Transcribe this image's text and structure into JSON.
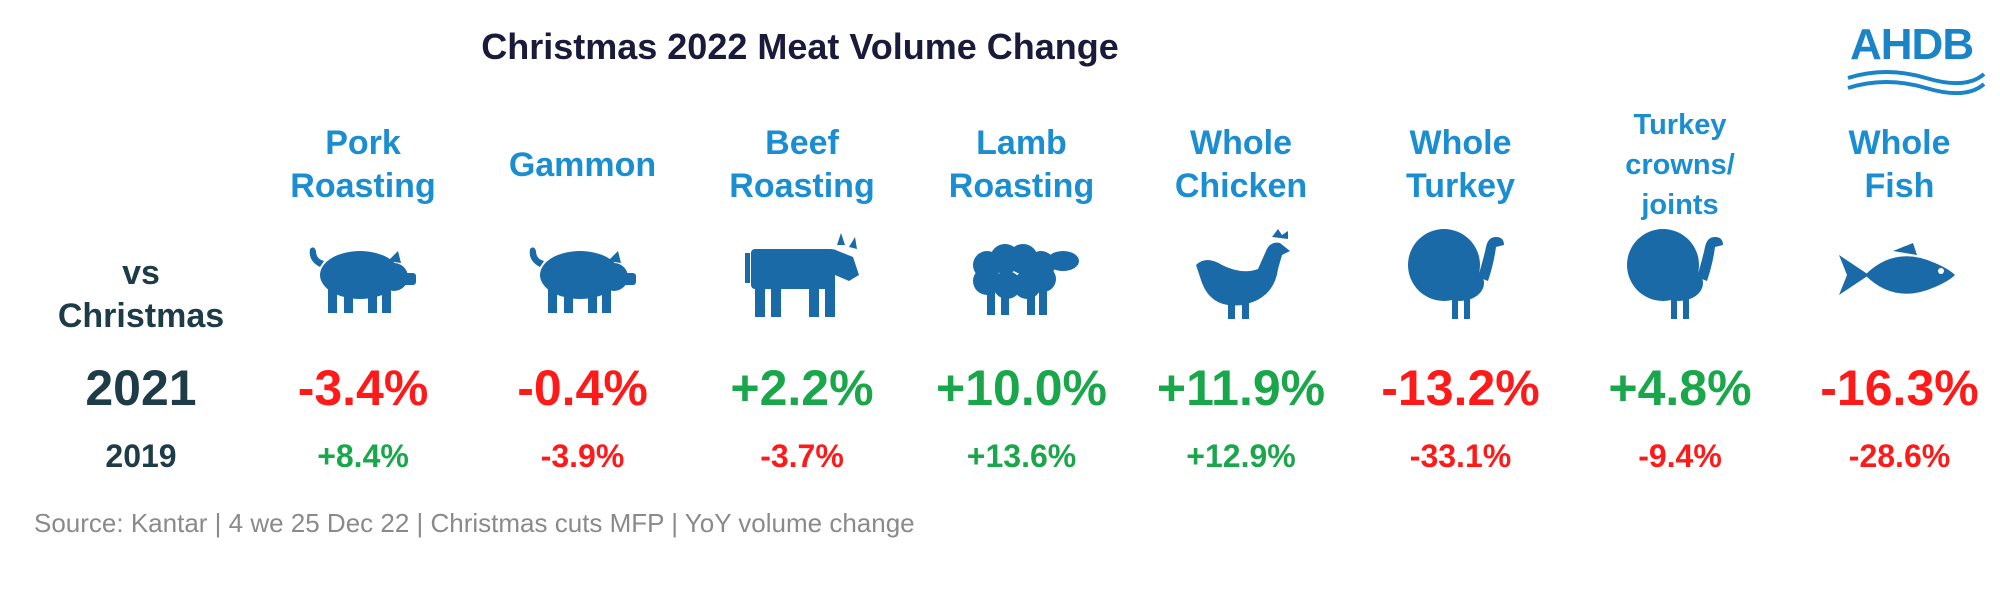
{
  "title": "Christmas 2022 Meat Volume Change",
  "logo": {
    "text": "AHDB"
  },
  "row_labels": {
    "vs": "vs\nChristmas",
    "y2021": "2021",
    "y2019": "2019"
  },
  "source": "Source: Kantar | 4 we 25 Dec 22 | Christmas cuts MFP | YoY volume change",
  "colors": {
    "positive": "#1aa64a",
    "negative": "#ff1a1a",
    "header": "#1a8ed0",
    "icon": "#1b6aa8"
  },
  "chart_data": {
    "type": "table",
    "title": "Christmas 2022 Meat Volume Change",
    "categories": [
      "Pork Roasting",
      "Gammon",
      "Beef Roasting",
      "Lamb Roasting",
      "Whole Chicken",
      "Whole Turkey",
      "Turkey crowns/ joints",
      "Whole Fish"
    ],
    "series": [
      {
        "name": "2021",
        "values": [
          -3.4,
          -0.4,
          2.2,
          10.0,
          11.9,
          -13.2,
          4.8,
          -16.3
        ]
      },
      {
        "name": "2019",
        "values": [
          8.4,
          -3.9,
          -3.7,
          13.6,
          12.9,
          -33.1,
          -9.4,
          -28.6
        ]
      }
    ],
    "unit": "%"
  },
  "columns": [
    {
      "label": "Pork\nRoasting",
      "icon": "pig-icon",
      "v2021": "-3.4%",
      "v2019": "+8.4%"
    },
    {
      "label": "Gammon",
      "icon": "pig-icon",
      "v2021": "-0.4%",
      "v2019": "-3.9%"
    },
    {
      "label": "Beef\nRoasting",
      "icon": "cow-icon",
      "v2021": "+2.2%",
      "v2019": "-3.7%"
    },
    {
      "label": "Lamb\nRoasting",
      "icon": "sheep-icon",
      "v2021": "+10.0%",
      "v2019": "+13.6%"
    },
    {
      "label": "Whole\nChicken",
      "icon": "chicken-icon",
      "v2021": "+11.9%",
      "v2019": "+12.9%"
    },
    {
      "label": "Whole\nTurkey",
      "icon": "turkey-icon",
      "v2021": "-13.2%",
      "v2019": "-33.1%"
    },
    {
      "label": "Turkey\ncrowns/\njoints",
      "icon": "turkey-icon",
      "v2021": "+4.8%",
      "v2019": "-9.4%"
    },
    {
      "label": "Whole\nFish",
      "icon": "fish-icon",
      "v2021": "-16.3%",
      "v2019": "-28.6%"
    }
  ]
}
